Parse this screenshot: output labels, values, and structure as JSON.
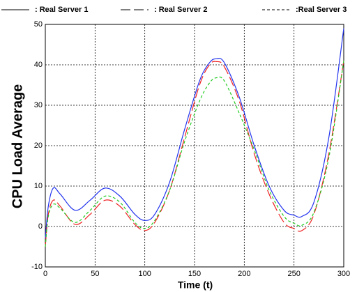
{
  "chart_data": {
    "type": "line",
    "x_label": "Time (t)",
    "y_label": "CPU Load Average",
    "x": [
      0,
      3,
      8,
      15,
      30,
      45,
      60,
      75,
      90,
      100,
      110,
      125,
      140,
      155,
      165,
      172,
      180,
      195,
      210,
      225,
      240,
      250,
      258,
      270,
      285,
      300
    ],
    "series": [
      {
        "name": ": Real Server 1",
        "color": "#2233ee",
        "dash": "solid",
        "values": [
          -3,
          5,
          9.5,
          8,
          4,
          6.5,
          9.5,
          7.5,
          3,
          1.5,
          3,
          11,
          24,
          36,
          40.5,
          41.5,
          40.5,
          32,
          20,
          10,
          4,
          2.8,
          2.5,
          6,
          22,
          49
        ]
      },
      {
        "name": ": Real Server 2",
        "color": "#ee2222",
        "dash": "long",
        "values": [
          -5,
          3,
          6.5,
          5,
          0.5,
          3,
          6.5,
          5,
          0.5,
          -1,
          1,
          9,
          22,
          35,
          40,
          40.8,
          39.5,
          31,
          18,
          8,
          1,
          -0.5,
          -1,
          3,
          18,
          41
        ]
      },
      {
        "name": ":Real Server 3",
        "color": "#22cc22",
        "dash": "short",
        "values": [
          -5,
          2.5,
          5.5,
          4.5,
          1,
          4,
          7.5,
          6,
          1,
          -0.5,
          1.5,
          9,
          21,
          31,
          35.5,
          36.8,
          36,
          28,
          19,
          9,
          2.5,
          0.8,
          0.3,
          3.5,
          17,
          41
        ]
      }
    ],
    "xlim": [
      0,
      300
    ],
    "xticks": [
      0,
      50,
      100,
      150,
      200,
      250,
      300
    ],
    "ylim": [
      -10,
      50
    ],
    "yticks": [
      -10,
      0,
      10,
      20,
      30,
      40,
      50
    ],
    "grid": true,
    "legend": "top"
  }
}
